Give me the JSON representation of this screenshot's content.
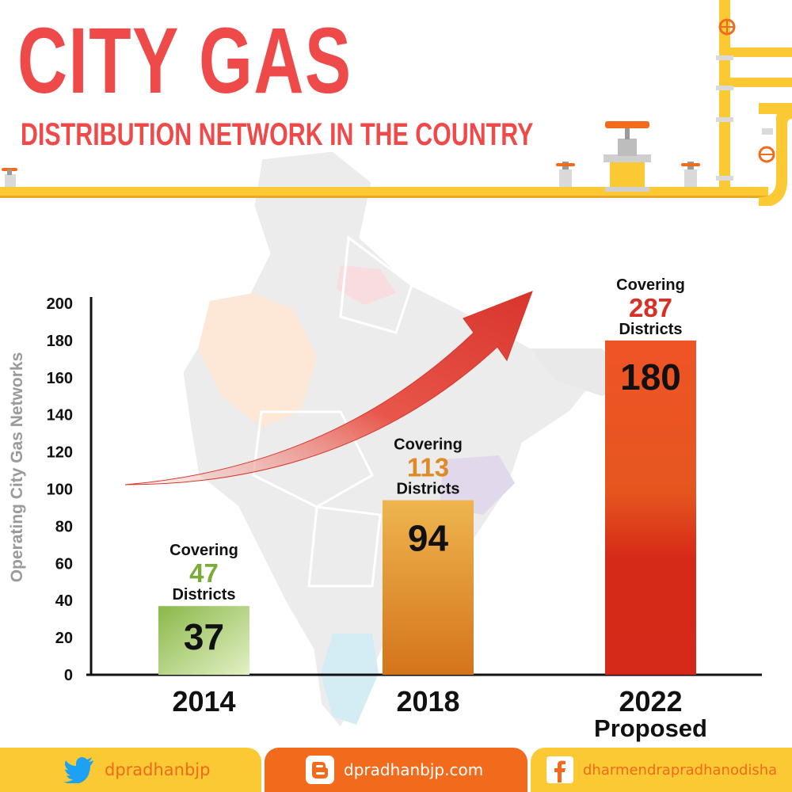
{
  "header": {
    "title": "CITY GAS",
    "subtitle": "DISTRIBUTION NETWORK IN THE COUNTRY"
  },
  "chart_data": {
    "type": "bar",
    "categories": [
      "2014",
      "2018",
      "2022"
    ],
    "category_sublabels": [
      "",
      "",
      "Proposed"
    ],
    "values": [
      37,
      94,
      180
    ],
    "bar_labels": [
      "37",
      "94",
      "180"
    ],
    "annotations": [
      {
        "prefix": "Covering",
        "number": "47",
        "suffix": "Districts"
      },
      {
        "prefix": "Covering",
        "number": "113",
        "suffix": "Districts"
      },
      {
        "prefix": "Covering",
        "number": "287",
        "suffix": "Districts"
      }
    ],
    "ylabel": "Operating City Gas Networks",
    "xlabel": "",
    "ylim": [
      0,
      200
    ],
    "yticks": [
      0,
      20,
      40,
      60,
      80,
      100,
      120,
      140,
      160,
      180,
      200
    ],
    "colors": {
      "bar_2014": [
        "#8ab84a",
        "#dcebb8"
      ],
      "bar_2018": [
        "#e9ad45",
        "#d8781c"
      ],
      "bar_2022": [
        "#f05a28",
        "#d42a18"
      ],
      "number_2014": "#7aad38",
      "number_2018": "#de8a25",
      "number_2022": "#d83024",
      "arrow": "#e8483d"
    }
  },
  "footer": {
    "twitter": {
      "icon": "twitter-bird-icon",
      "handle": "dpradhanbjp"
    },
    "blog": {
      "icon": "blogger-icon",
      "url": "dpradhanbjp.com"
    },
    "facebook": {
      "icon": "facebook-icon",
      "page": "dharmendrapradhanodisha"
    }
  }
}
